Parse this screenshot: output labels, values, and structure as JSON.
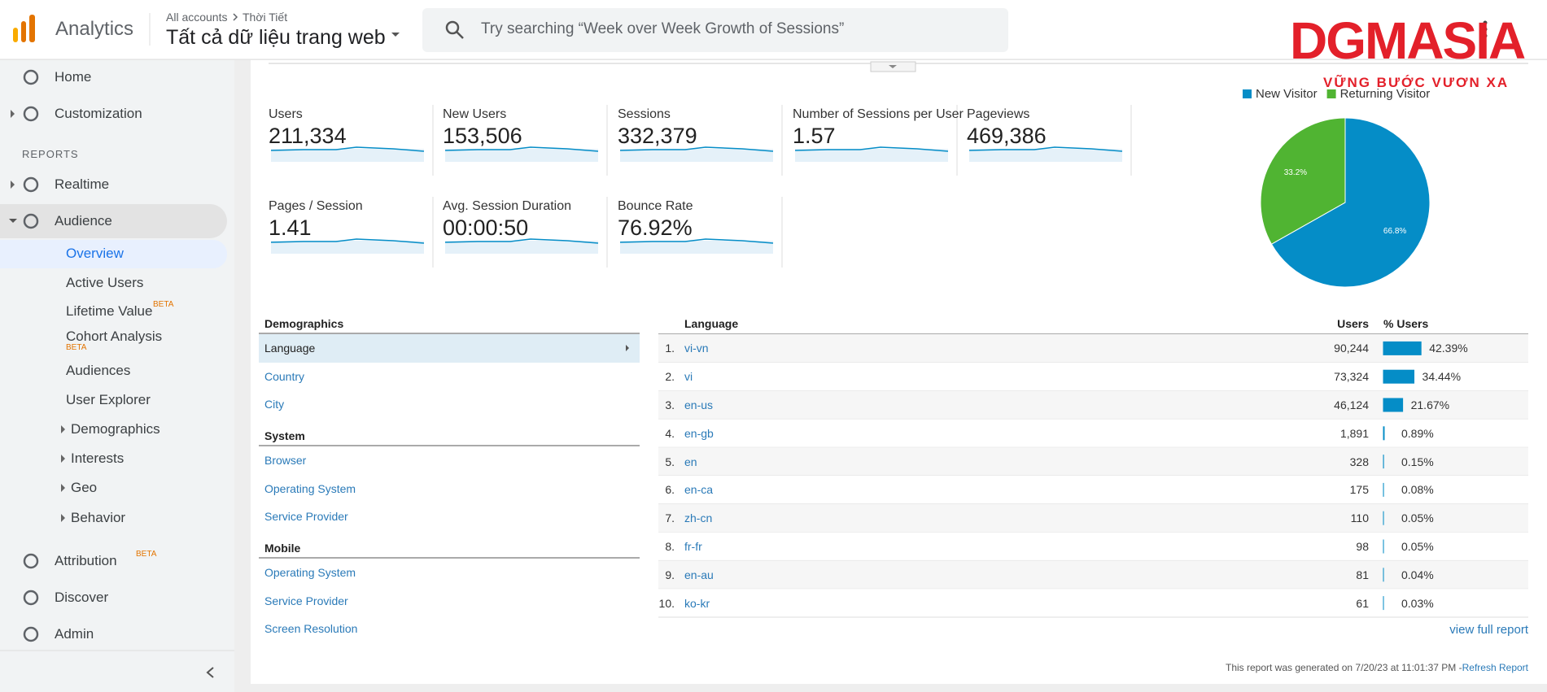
{
  "header": {
    "product": "Analytics",
    "breadcrumb": "All accounts",
    "account": "Thời Tiết",
    "property": "Tất cả dữ liệu trang web",
    "search_placeholder": "Try searching “Week over Week Growth of Sessions”"
  },
  "watermark": {
    "brand": "DGMASIA",
    "tagline": "VỮNG BƯỚC VƯƠN XA"
  },
  "sidebar": {
    "reports_heading": "REPORTS",
    "items": [
      {
        "label": "Home"
      },
      {
        "label": "Customization"
      },
      {
        "label": "Realtime"
      },
      {
        "label": "Audience"
      },
      {
        "label": "Overview"
      },
      {
        "label": "Active Users"
      },
      {
        "label": "Lifetime Value",
        "badge": "BETA"
      },
      {
        "label": "Cohort Analysis",
        "badge": "BETA"
      },
      {
        "label": "Audiences"
      },
      {
        "label": "User Explorer"
      },
      {
        "label": "Demographics"
      },
      {
        "label": "Interests"
      },
      {
        "label": "Geo"
      },
      {
        "label": "Behavior"
      },
      {
        "label": "Attribution",
        "badge": "BETA"
      },
      {
        "label": "Discover"
      },
      {
        "label": "Admin"
      }
    ]
  },
  "metrics": [
    {
      "label": "Users",
      "value": "211,334"
    },
    {
      "label": "New Users",
      "value": "153,506"
    },
    {
      "label": "Sessions",
      "value": "332,379"
    },
    {
      "label": "Number of Sessions per User",
      "value": "1.57"
    },
    {
      "label": "Pageviews",
      "value": "469,386"
    },
    {
      "label": "Pages / Session",
      "value": "1.41"
    },
    {
      "label": "Avg. Session Duration",
      "value": "00:00:50"
    },
    {
      "label": "Bounce Rate",
      "value": "76.92%"
    }
  ],
  "pie": {
    "series": [
      {
        "name": "New Visitor",
        "color": "#058dc7",
        "value": 66.8,
        "label": "66.8%"
      },
      {
        "name": "Returning Visitor",
        "color": "#50b432",
        "value": 33.2,
        "label": "33.2%"
      }
    ]
  },
  "demographics": {
    "sections": [
      {
        "title": "Demographics",
        "links": [
          "Language",
          "Country",
          "City"
        ]
      },
      {
        "title": "System",
        "links": [
          "Browser",
          "Operating System",
          "Service Provider"
        ]
      },
      {
        "title": "Mobile",
        "links": [
          "Operating System",
          "Service Provider",
          "Screen Resolution"
        ]
      }
    ]
  },
  "language_table": {
    "columns": [
      "Language",
      "Users",
      "% Users"
    ],
    "rows": [
      {
        "rank": "1.",
        "language": "vi-vn",
        "users": "90,244",
        "pct": 42.39,
        "pct_label": "42.39%"
      },
      {
        "rank": "2.",
        "language": "vi",
        "users": "73,324",
        "pct": 34.44,
        "pct_label": "34.44%"
      },
      {
        "rank": "3.",
        "language": "en-us",
        "users": "46,124",
        "pct": 21.67,
        "pct_label": "21.67%"
      },
      {
        "rank": "4.",
        "language": "en-gb",
        "users": "1,891",
        "pct": 0.89,
        "pct_label": "0.89%"
      },
      {
        "rank": "5.",
        "language": "en",
        "users": "328",
        "pct": 0.15,
        "pct_label": "0.15%"
      },
      {
        "rank": "6.",
        "language": "en-ca",
        "users": "175",
        "pct": 0.08,
        "pct_label": "0.08%"
      },
      {
        "rank": "7.",
        "language": "zh-cn",
        "users": "110",
        "pct": 0.05,
        "pct_label": "0.05%"
      },
      {
        "rank": "8.",
        "language": "fr-fr",
        "users": "98",
        "pct": 0.05,
        "pct_label": "0.05%"
      },
      {
        "rank": "9.",
        "language": "en-au",
        "users": "81",
        "pct": 0.04,
        "pct_label": "0.04%"
      },
      {
        "rank": "10.",
        "language": "ko-kr",
        "users": "61",
        "pct": 0.03,
        "pct_label": "0.03%"
      }
    ],
    "view_full_report": "view full report"
  },
  "footer": {
    "generated": "This report was generated on 7/20/23 at 11:01:37 PM - ",
    "refresh": "Refresh Report"
  }
}
